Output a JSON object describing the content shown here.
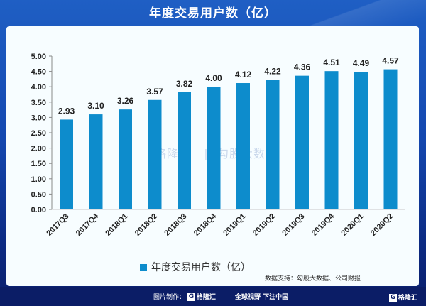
{
  "header": {
    "title": "年度交易用户数（亿）"
  },
  "chart_data": {
    "type": "bar",
    "title": "年度交易用户数（亿）",
    "categories": [
      "2017Q3",
      "2017Q4",
      "2018Q1",
      "2018Q2",
      "2018Q3",
      "2018Q4",
      "2019Q1",
      "2019Q2",
      "2019Q3",
      "2019Q4",
      "2020Q1",
      "2020Q2"
    ],
    "series": [
      {
        "name": "年度交易用户数（亿）",
        "values": [
          2.93,
          3.1,
          3.26,
          3.57,
          3.82,
          4.0,
          4.12,
          4.22,
          4.36,
          4.51,
          4.49,
          4.57
        ],
        "color": "#0d8ccc"
      }
    ],
    "data_labels": [
      "2.93",
      "3.10",
      "3.26",
      "3.57",
      "3.82",
      "4.00",
      "4.12",
      "4.22",
      "4.36",
      "4.51",
      "4.49",
      "4.57"
    ],
    "yticks": [
      "0.00",
      "0.50",
      "1.00",
      "1.50",
      "2.00",
      "2.50",
      "3.00",
      "3.50",
      "4.00",
      "4.50",
      "5.00"
    ],
    "ylim": [
      0,
      5
    ],
    "xlabel": "",
    "ylabel": "",
    "grid": false,
    "legend": "bottom-center"
  },
  "watermark": {
    "brand": "格隆汇",
    "text": "勾股大数据"
  },
  "footer": {
    "source": "数据支持：勾股大数据、公司财报",
    "made_by_label": "图片制作：",
    "brand": "格隆汇",
    "slogan": "全球视野 下注中国",
    "corner_brand": "格隆汇"
  }
}
